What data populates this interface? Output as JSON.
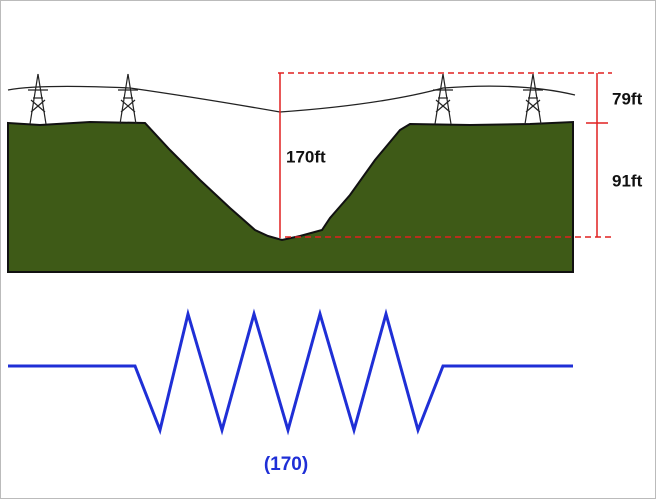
{
  "labels": {
    "top": "79ft",
    "bottom": "91ft",
    "total": "170ft"
  },
  "symbol": "(170)"
}
